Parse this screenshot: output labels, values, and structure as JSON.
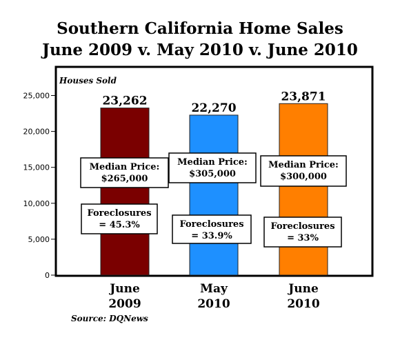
{
  "chart_data": {
    "type": "bar",
    "title": "Southern California Home Sales",
    "subtitle": "June 2009 v. May 2010 v. June 2010",
    "ylabel": "Houses Sold",
    "xlabel": "",
    "ylim": [
      0,
      27000
    ],
    "yticks": [
      0,
      5000,
      10000,
      15000,
      20000,
      25000
    ],
    "ytick_labels": [
      "0",
      "5,000",
      "10,000",
      "15,000",
      "20,000",
      "25,000"
    ],
    "grid": false,
    "categories": [
      [
        "June",
        "2009"
      ],
      [
        "May",
        "2010"
      ],
      [
        "June",
        "2010"
      ]
    ],
    "values": [
      23262,
      22270,
      23871
    ],
    "value_labels": [
      "23,262",
      "22,270",
      "23,871"
    ],
    "colors": [
      "#7a0000",
      "#1e90ff",
      "#ff7f00"
    ],
    "annotations": [
      {
        "price_lines": [
          "Median Price:",
          "$265,000"
        ],
        "foreclosure_lines": [
          "Foreclosures",
          "= 45.3%"
        ]
      },
      {
        "price_lines": [
          "Median Price:",
          "$305,000"
        ],
        "foreclosure_lines": [
          "Foreclosures",
          "= 33.9%"
        ]
      },
      {
        "price_lines": [
          "Median Price:",
          "$300,000"
        ],
        "foreclosure_lines": [
          "Foreclosures",
          "= 33%"
        ]
      }
    ],
    "source": "Source: DQNews"
  }
}
